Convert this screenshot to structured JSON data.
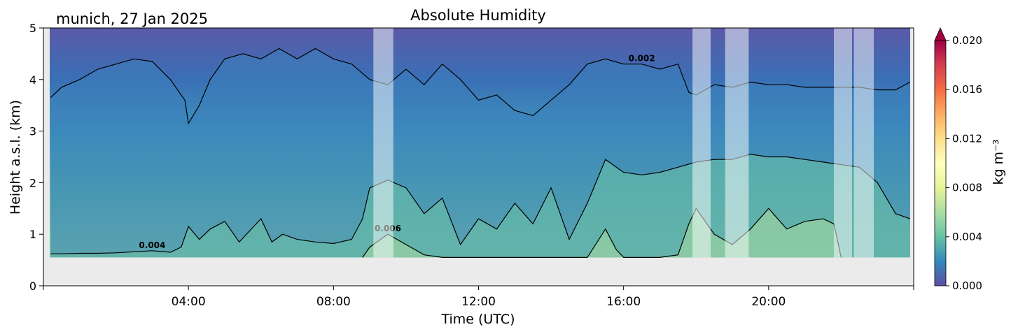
{
  "chart_data": {
    "type": "heatmap",
    "title": "Absolute Humidity",
    "location_label": "munich, 27 Jan 2025",
    "xlabel": "Time (UTC)",
    "ylabel": "Height a.s.l. (km)",
    "x_range_hours": [
      0,
      24
    ],
    "y_range_km": [
      0,
      5
    ],
    "x_ticks": [
      {
        "hour": 4,
        "label": "04:00"
      },
      {
        "hour": 8,
        "label": "08:00"
      },
      {
        "hour": 12,
        "label": "12:00"
      },
      {
        "hour": 16,
        "label": "16:00"
      },
      {
        "hour": 20,
        "label": "20:00"
      }
    ],
    "y_ticks": [
      {
        "value": 0,
        "label": "0"
      },
      {
        "value": 1,
        "label": "1"
      },
      {
        "value": 2,
        "label": "2"
      },
      {
        "value": 3,
        "label": "3"
      },
      {
        "value": 4,
        "label": "4"
      },
      {
        "value": 5,
        "label": "5"
      }
    ],
    "data_bottom_km": 0.55,
    "colorbar": {
      "label": "kg m⁻³",
      "range": [
        0,
        0.02
      ],
      "ticks": [
        "0.000",
        "0.004",
        "0.008",
        "0.012",
        "0.016",
        "0.020"
      ],
      "colors": [
        "#5e4fa2",
        "#3288bd",
        "#66c2a5",
        "#abdda4",
        "#e6f598",
        "#ffffbf",
        "#fee08b",
        "#fdae61",
        "#f46d43",
        "#d53e4f",
        "#9e0142"
      ],
      "extend": "max"
    },
    "contours": [
      {
        "level": 0.002,
        "label": "0.002",
        "label_at_hour": 16.4,
        "points": [
          [
            0.2,
            3.65
          ],
          [
            0.5,
            3.85
          ],
          [
            1.0,
            4.0
          ],
          [
            1.5,
            4.2
          ],
          [
            2.0,
            4.3
          ],
          [
            2.5,
            4.4
          ],
          [
            3.0,
            4.35
          ],
          [
            3.5,
            4.0
          ],
          [
            3.9,
            3.6
          ],
          [
            4.0,
            3.15
          ],
          [
            4.3,
            3.5
          ],
          [
            4.6,
            4.0
          ],
          [
            5.0,
            4.4
          ],
          [
            5.5,
            4.5
          ],
          [
            6.0,
            4.4
          ],
          [
            6.5,
            4.6
          ],
          [
            7.0,
            4.4
          ],
          [
            7.5,
            4.6
          ],
          [
            8.0,
            4.4
          ],
          [
            8.5,
            4.3
          ],
          [
            9.0,
            4.0
          ],
          [
            9.5,
            3.9
          ],
          [
            10.0,
            4.2
          ],
          [
            10.5,
            3.9
          ],
          [
            11.0,
            4.3
          ],
          [
            11.5,
            4.0
          ],
          [
            12.0,
            3.6
          ],
          [
            12.5,
            3.7
          ],
          [
            13.0,
            3.4
          ],
          [
            13.5,
            3.3
          ],
          [
            14.0,
            3.6
          ],
          [
            14.5,
            3.9
          ],
          [
            15.0,
            4.3
          ],
          [
            15.5,
            4.4
          ],
          [
            16.0,
            4.3
          ],
          [
            16.5,
            4.3
          ],
          [
            17.0,
            4.2
          ],
          [
            17.5,
            4.3
          ],
          [
            17.8,
            3.75
          ],
          [
            18.0,
            3.7
          ],
          [
            18.5,
            3.9
          ],
          [
            19.0,
            3.85
          ],
          [
            19.5,
            3.95
          ],
          [
            20.0,
            3.9
          ],
          [
            20.5,
            3.9
          ],
          [
            21.0,
            3.85
          ],
          [
            21.5,
            3.85
          ],
          [
            22.0,
            3.85
          ],
          [
            22.5,
            3.85
          ],
          [
            23.0,
            3.8
          ],
          [
            23.5,
            3.8
          ],
          [
            23.9,
            3.95
          ]
        ]
      },
      {
        "level": 0.004,
        "label": "0.004",
        "label_at_hour": 2.9,
        "points": [
          [
            0.2,
            0.62
          ],
          [
            0.5,
            0.62
          ],
          [
            1.0,
            0.63
          ],
          [
            1.5,
            0.63
          ],
          [
            2.0,
            0.64
          ],
          [
            2.5,
            0.66
          ],
          [
            3.0,
            0.68
          ],
          [
            3.5,
            0.65
          ],
          [
            3.8,
            0.75
          ],
          [
            4.0,
            1.15
          ],
          [
            4.3,
            0.9
          ],
          [
            4.6,
            1.1
          ],
          [
            5.0,
            1.25
          ],
          [
            5.4,
            0.85
          ],
          [
            5.8,
            1.15
          ],
          [
            6.0,
            1.3
          ],
          [
            6.3,
            0.85
          ],
          [
            6.6,
            1.0
          ],
          [
            7.0,
            0.9
          ],
          [
            7.5,
            0.85
          ],
          [
            8.0,
            0.82
          ],
          [
            8.5,
            0.9
          ],
          [
            8.8,
            1.3
          ],
          [
            9.0,
            1.9
          ],
          [
            9.5,
            2.05
          ],
          [
            10.0,
            1.9
          ],
          [
            10.5,
            1.4
          ],
          [
            11.0,
            1.7
          ],
          [
            11.5,
            0.8
          ],
          [
            12.0,
            1.3
          ],
          [
            12.5,
            1.1
          ],
          [
            13.0,
            1.6
          ],
          [
            13.5,
            1.2
          ],
          [
            14.0,
            1.9
          ],
          [
            14.5,
            0.9
          ],
          [
            15.0,
            1.6
          ],
          [
            15.5,
            2.45
          ],
          [
            16.0,
            2.2
          ],
          [
            16.5,
            2.15
          ],
          [
            17.0,
            2.2
          ],
          [
            17.5,
            2.3
          ],
          [
            18.0,
            2.4
          ],
          [
            18.5,
            2.45
          ],
          [
            19.0,
            2.45
          ],
          [
            19.5,
            2.55
          ],
          [
            20.0,
            2.5
          ],
          [
            20.5,
            2.5
          ],
          [
            21.0,
            2.45
          ],
          [
            21.5,
            2.4
          ],
          [
            22.0,
            2.35
          ],
          [
            22.5,
            2.3
          ],
          [
            23.0,
            2.0
          ],
          [
            23.5,
            1.4
          ],
          [
            23.9,
            1.3
          ]
        ]
      },
      {
        "level": 0.006,
        "label": "0.006",
        "label_at_hour": 9.7,
        "points": [
          [
            8.8,
            0.55
          ],
          [
            9.0,
            0.75
          ],
          [
            9.5,
            1.0
          ],
          [
            10.0,
            0.8
          ],
          [
            10.5,
            0.6
          ],
          [
            11.0,
            0.55
          ],
          [
            15.0,
            0.55
          ],
          [
            15.5,
            1.1
          ],
          [
            15.8,
            0.7
          ],
          [
            16.0,
            0.55
          ],
          [
            17.0,
            0.55
          ],
          [
            17.5,
            0.6
          ],
          [
            17.8,
            1.2
          ],
          [
            18.0,
            1.5
          ],
          [
            18.5,
            1.0
          ],
          [
            19.0,
            0.8
          ],
          [
            19.5,
            1.1
          ],
          [
            20.0,
            1.5
          ],
          [
            20.5,
            1.1
          ],
          [
            21.0,
            1.25
          ],
          [
            21.5,
            1.3
          ],
          [
            21.8,
            1.2
          ],
          [
            22.0,
            0.55
          ]
        ]
      }
    ],
    "masked_time_ranges_hours": [
      [
        9.1,
        9.65
      ],
      [
        17.9,
        18.4
      ],
      [
        18.8,
        19.45
      ],
      [
        21.8,
        22.3
      ],
      [
        22.35,
        22.9
      ]
    ]
  }
}
